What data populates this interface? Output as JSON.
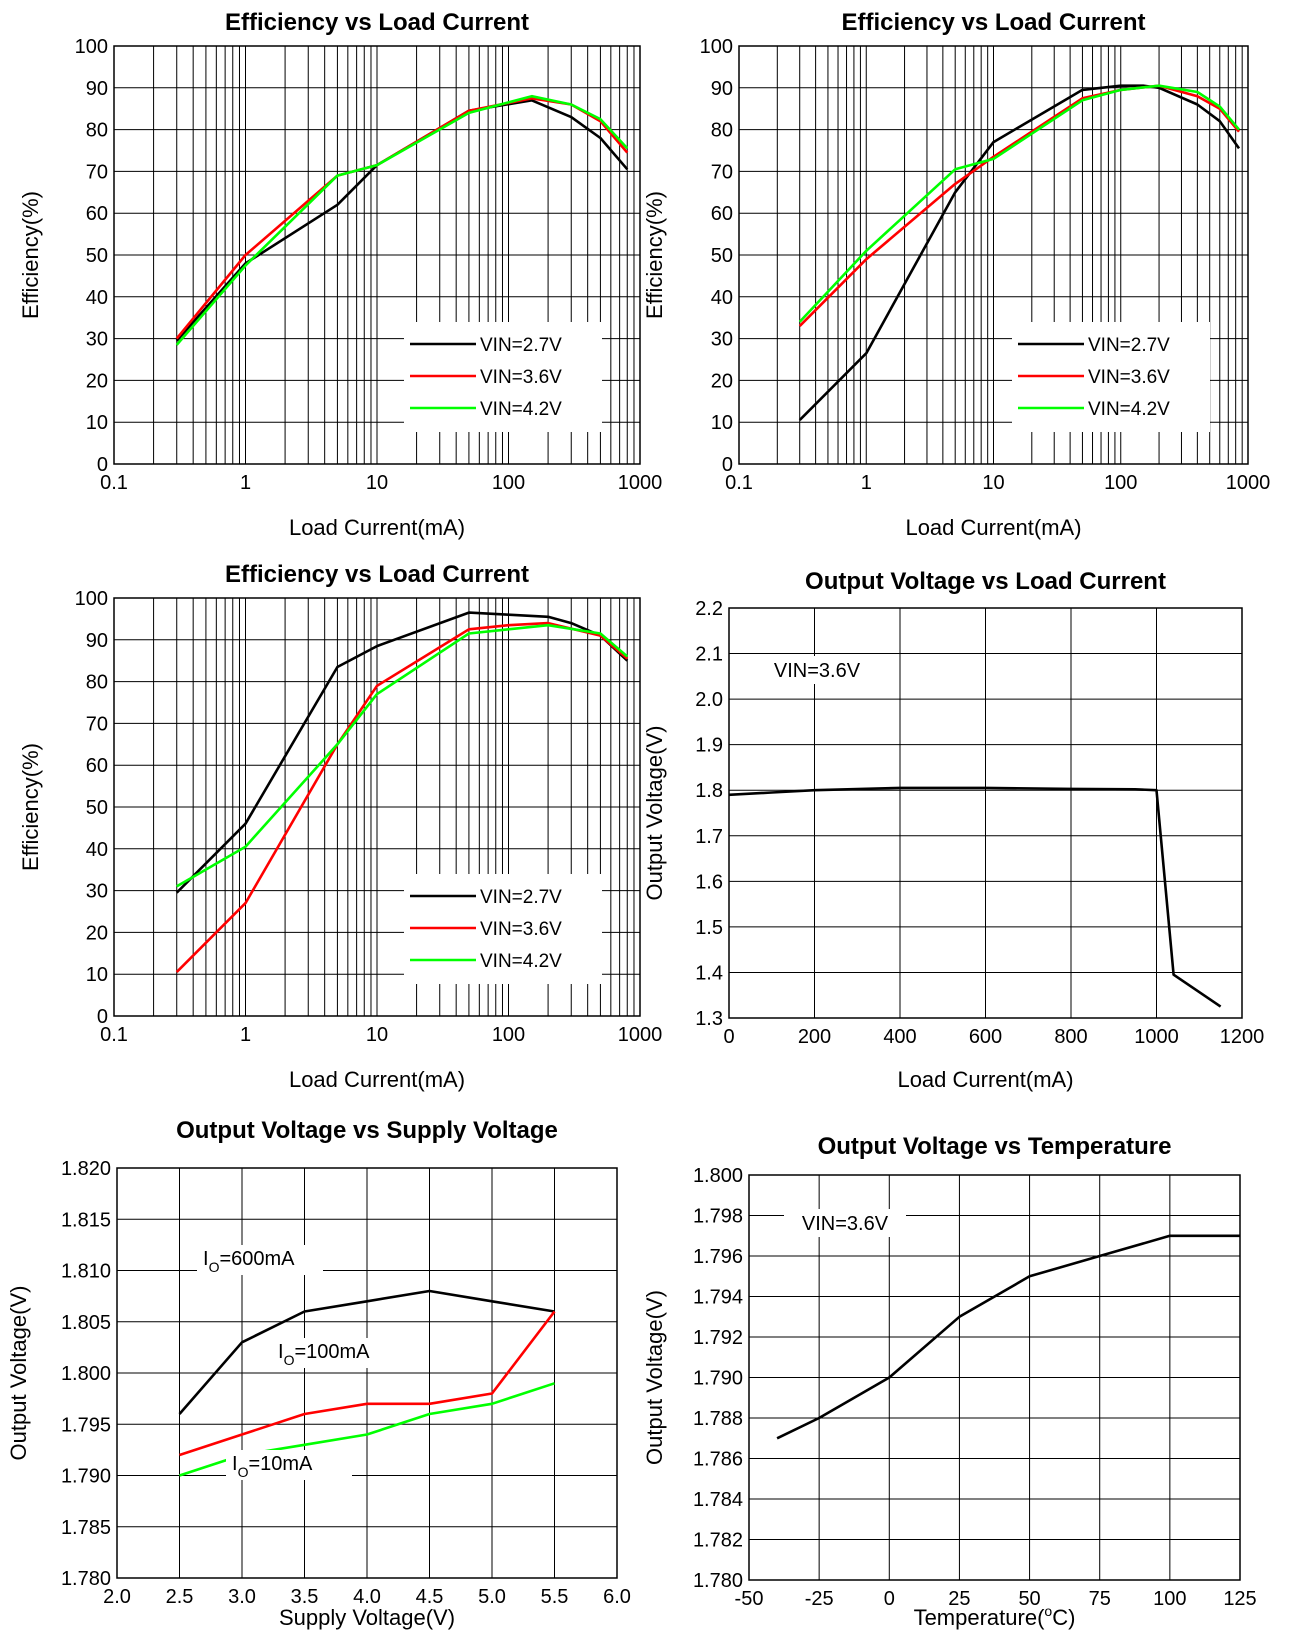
{
  "chart_data": [
    {
      "type": "line",
      "title": "Efficiency vs Load Current",
      "xlabel": "Load Current(mA)",
      "ylabel": "Efficiency(%)",
      "xscale": "log",
      "xlim": [
        0.1,
        1000
      ],
      "ylim": [
        0,
        100
      ],
      "xticks": [
        "0.1",
        "1",
        "10",
        "100",
        "1000"
      ],
      "yticks": [
        "0",
        "10",
        "20",
        "30",
        "40",
        "50",
        "60",
        "70",
        "80",
        "90",
        "100"
      ],
      "grid": true,
      "legend": "bottom-right",
      "series": [
        {
          "name": "VIN=2.7V",
          "color": "#000000",
          "x": [
            0.3,
            1,
            5,
            10,
            50,
            150,
            300,
            500,
            800
          ],
          "y": [
            29.5,
            48,
            62,
            71.5,
            84.5,
            87,
            83,
            78,
            70.5
          ]
        },
        {
          "name": "VIN=3.6V",
          "color": "#ff0000",
          "x": [
            0.3,
            1,
            5,
            10,
            50,
            150,
            300,
            500,
            800
          ],
          "y": [
            30,
            50,
            69,
            71.5,
            84.5,
            87.5,
            86,
            82,
            74.5
          ]
        },
        {
          "name": "VIN=4.2V",
          "color": "#00ff00",
          "x": [
            0.3,
            1,
            5,
            10,
            50,
            150,
            300,
            500,
            800
          ],
          "y": [
            28.5,
            47.5,
            69,
            71.5,
            84,
            88,
            86,
            82.5,
            75.5
          ]
        }
      ]
    },
    {
      "type": "line",
      "title": "Efficiency vs Load Current",
      "xlabel": "Load Current(mA)",
      "ylabel": "Efficiency(%)",
      "xscale": "log",
      "xlim": [
        0.1,
        1000
      ],
      "ylim": [
        0,
        100
      ],
      "xticks": [
        "0.1",
        "1",
        "10",
        "100",
        "1000"
      ],
      "yticks": [
        "0",
        "10",
        "20",
        "30",
        "40",
        "50",
        "60",
        "70",
        "80",
        "90",
        "100"
      ],
      "grid": true,
      "legend": "bottom-right",
      "series": [
        {
          "name": "VIN=2.7V",
          "color": "#000000",
          "x": [
            0.3,
            1,
            5,
            10,
            50,
            100,
            150,
            200,
            400,
            600,
            850
          ],
          "y": [
            10.5,
            26.5,
            65,
            77,
            89.5,
            90.5,
            90.5,
            90,
            86,
            82,
            75.5
          ]
        },
        {
          "name": "VIN=3.6V",
          "color": "#ff0000",
          "x": [
            0.3,
            1,
            5,
            10,
            50,
            100,
            200,
            400,
            600,
            850
          ],
          "y": [
            33,
            49,
            67,
            73.5,
            87.5,
            89.5,
            90.5,
            88,
            85,
            79.5
          ]
        },
        {
          "name": "VIN=4.2V",
          "color": "#00ff00",
          "x": [
            0.3,
            1,
            5,
            10,
            50,
            100,
            200,
            400,
            600,
            850
          ],
          "y": [
            34,
            51,
            70.5,
            73,
            87,
            89.5,
            90.5,
            89,
            85.5,
            80
          ]
        }
      ]
    },
    {
      "type": "line",
      "title": "Efficiency vs Load Current",
      "xlabel": "Load Current(mA)",
      "ylabel": "Efficiency(%)",
      "xscale": "log",
      "xlim": [
        0.1,
        1000
      ],
      "ylim": [
        0,
        100
      ],
      "xticks": [
        "0.1",
        "1",
        "10",
        "100",
        "1000"
      ],
      "yticks": [
        "0",
        "10",
        "20",
        "30",
        "40",
        "50",
        "60",
        "70",
        "80",
        "90",
        "100"
      ],
      "grid": true,
      "legend": "bottom-right",
      "series": [
        {
          "name": "VIN=2.7V",
          "color": "#000000",
          "x": [
            0.3,
            1,
            5,
            10,
            50,
            100,
            200,
            300,
            500,
            800
          ],
          "y": [
            29.5,
            46,
            83.5,
            88.5,
            96.5,
            96,
            95.5,
            94,
            91,
            85
          ]
        },
        {
          "name": "VIN=3.6V",
          "color": "#ff0000",
          "x": [
            0.3,
            1,
            5,
            10,
            50,
            100,
            200,
            500,
            800
          ],
          "y": [
            10.5,
            27,
            65,
            79,
            92.5,
            93.5,
            94,
            91,
            85.5
          ]
        },
        {
          "name": "VIN=4.2V",
          "color": "#00ff00",
          "x": [
            0.3,
            1,
            5,
            10,
            50,
            100,
            200,
            500,
            800
          ],
          "y": [
            31,
            40.5,
            65,
            77,
            91.5,
            92.5,
            93.5,
            91.5,
            86
          ]
        }
      ]
    },
    {
      "type": "line",
      "title": "Output Voltage vs Load Current",
      "xlabel": "Load Current(mA)",
      "ylabel": "Output Voltage(V)",
      "xlim": [
        0,
        1200
      ],
      "ylim": [
        1.3,
        2.2
      ],
      "xticks": [
        "0",
        "200",
        "400",
        "600",
        "800",
        "1000",
        "1200"
      ],
      "yticks": [
        "1.3",
        "1.4",
        "1.5",
        "1.6",
        "1.7",
        "1.8",
        "1.9",
        "2.0",
        "2.1",
        "2.2"
      ],
      "grid": true,
      "annotation": "VIN=3.6V",
      "series": [
        {
          "name": "",
          "color": "#000000",
          "x": [
            0,
            100,
            200,
            400,
            600,
            800,
            950,
            1000,
            1040,
            1150
          ],
          "y": [
            1.79,
            1.795,
            1.8,
            1.805,
            1.805,
            1.803,
            1.802,
            1.8,
            1.395,
            1.325
          ]
        }
      ]
    },
    {
      "type": "line",
      "title": "Output Voltage vs Supply Voltage",
      "xlabel": "Supply Voltage(V)",
      "ylabel": "Output Voltage(V)",
      "xlim": [
        2.0,
        6.0
      ],
      "ylim": [
        1.78,
        1.82
      ],
      "xticks": [
        "2.0",
        "2.5",
        "3.0",
        "3.5",
        "4.0",
        "4.5",
        "5.0",
        "5.5",
        "6.0"
      ],
      "yticks": [
        "1.780",
        "1.785",
        "1.790",
        "1.795",
        "1.800",
        "1.805",
        "1.810",
        "1.815",
        "1.820"
      ],
      "grid": true,
      "series": [
        {
          "name": "I",
          "sub": "O",
          "suffix": "=600mA",
          "color": "#000000",
          "x": [
            2.5,
            3.0,
            3.5,
            4.0,
            4.5,
            5.0,
            5.5
          ],
          "y": [
            1.796,
            1.803,
            1.806,
            1.807,
            1.808,
            1.807,
            1.806
          ]
        },
        {
          "name": "I",
          "sub": "O",
          "suffix": "=100mA",
          "color": "#ff0000",
          "x": [
            2.5,
            3.0,
            3.5,
            4.0,
            4.5,
            5.0,
            5.5
          ],
          "y": [
            1.792,
            1.794,
            1.796,
            1.797,
            1.797,
            1.798,
            1.806
          ]
        },
        {
          "name": "I",
          "sub": "O",
          "suffix": "=10mA",
          "color": "#00ff00",
          "x": [
            2.5,
            3.0,
            3.5,
            4.0,
            4.5,
            5.0,
            5.5
          ],
          "y": [
            1.79,
            1.792,
            1.793,
            1.794,
            1.796,
            1.797,
            1.799
          ]
        }
      ]
    },
    {
      "type": "line",
      "title": "Output Voltage  vs Temperature",
      "xlabel_main": "Temperature(",
      "xlabel_sup": "o",
      "xlabel_end": "C)",
      "ylabel": "Output Voltage(V)",
      "xlim": [
        -50,
        125
      ],
      "ylim": [
        1.78,
        1.8
      ],
      "xticks": [
        "-50",
        "-25",
        "0",
        "25",
        "50",
        "75",
        "100",
        "125"
      ],
      "yticks": [
        "1.780",
        "1.782",
        "1.784",
        "1.786",
        "1.788",
        "1.790",
        "1.792",
        "1.794",
        "1.796",
        "1.798",
        "1.800"
      ],
      "grid": true,
      "annotation": "VIN=3.6V",
      "series": [
        {
          "name": "",
          "color": "#000000",
          "x": [
            -40,
            -25,
            0,
            25,
            50,
            75,
            100,
            125
          ],
          "y": [
            1.787,
            1.788,
            1.79,
            1.793,
            1.795,
            1.796,
            1.797,
            1.797
          ]
        }
      ]
    }
  ]
}
